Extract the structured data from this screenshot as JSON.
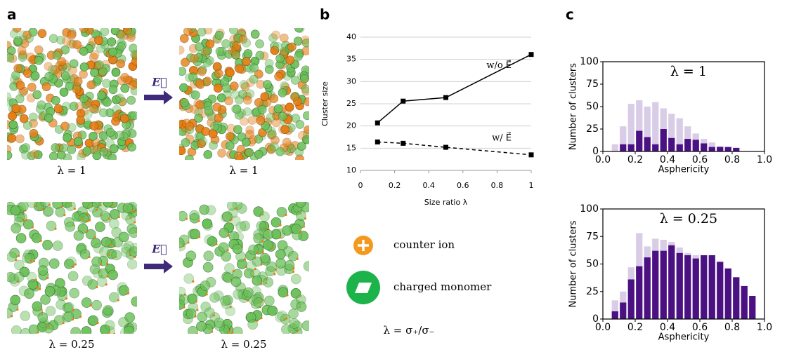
{
  "panels": [
    "a",
    "b",
    "c"
  ],
  "images": {
    "captions": [
      "λ = 1",
      "λ = 1",
      "λ = 0.25",
      "λ = 0.25"
    ],
    "arrow_labels": [
      "E⃗",
      "E⃗"
    ]
  },
  "legend": {
    "items": [
      "counter ion",
      "charged monomer"
    ],
    "formula": "λ = σ₊/σ₋"
  },
  "chart_data": [
    {
      "type": "line",
      "x": [
        0.1,
        0.25,
        0.5,
        1
      ],
      "xlabel": "Size ratio λ",
      "ylabel": "Cluster size",
      "xlim": [
        0,
        1
      ],
      "xticks": [
        0,
        0.2,
        0.4,
        0.6,
        0.8,
        1
      ],
      "ylim": [
        10,
        40
      ],
      "yticks": [
        10,
        15,
        20,
        25,
        30,
        35,
        40
      ],
      "grid": true,
      "series": [
        {
          "name": "w/o E⃗",
          "color": "#000000",
          "dash": false,
          "values": [
            20.7,
            25.6,
            26.4,
            36.1
          ]
        },
        {
          "name": "w/ E⃗",
          "color": "#000000",
          "dash": true,
          "values": [
            16.4,
            16.1,
            15.2,
            13.5
          ]
        }
      ]
    },
    {
      "type": "histogram",
      "title": "λ = 1",
      "xlabel": "Asphericity",
      "ylabel": "Number of clusters",
      "bins": [
        0.05,
        0.1,
        0.15,
        0.2,
        0.25,
        0.3,
        0.35,
        0.4,
        0.45,
        0.5,
        0.55,
        0.6,
        0.65,
        0.7,
        0.75,
        0.8,
        0.85
      ],
      "xlim": [
        0,
        1
      ],
      "xticks": [
        {
          "value": 0,
          "label": "0.0"
        },
        0.2,
        0.4,
        0.6,
        0.8,
        {
          "value": 1,
          "label": "1.0"
        }
      ],
      "ylim": [
        0,
        100
      ],
      "yticks": [
        0,
        25,
        50,
        75,
        100
      ],
      "series": [
        {
          "color": "#d8cce6",
          "values": [
            8,
            28,
            53,
            57,
            50,
            55,
            48,
            42,
            37,
            28,
            20,
            14,
            10,
            6,
            5,
            3
          ]
        },
        {
          "color": "#4b1183",
          "values": [
            0,
            8,
            8,
            23,
            16,
            8,
            25,
            15,
            8,
            14,
            13,
            9,
            5,
            5,
            5,
            4
          ]
        }
      ]
    },
    {
      "type": "histogram",
      "title": "λ = 0.25",
      "xlabel": "Asphericity",
      "ylabel": "Number of clusters",
      "bins": [
        0.05,
        0.1,
        0.15,
        0.2,
        0.25,
        0.3,
        0.35,
        0.4,
        0.45,
        0.5,
        0.55,
        0.6,
        0.65,
        0.7,
        0.75,
        0.8,
        0.85,
        0.9,
        0.95
      ],
      "xlim": [
        0,
        1
      ],
      "xticks": [
        {
          "value": 0,
          "label": "0.0"
        },
        0.2,
        0.4,
        0.6,
        0.8,
        {
          "value": 1,
          "label": "1.0"
        }
      ],
      "ylim": [
        0,
        100
      ],
      "yticks": [
        0,
        25,
        50,
        75,
        100
      ],
      "series": [
        {
          "color": "#d8cce6",
          "values": [
            17,
            25,
            47,
            78,
            66,
            73,
            72,
            70,
            65,
            60,
            58,
            57,
            56,
            52,
            45,
            38,
            30,
            21
          ]
        },
        {
          "color": "#4b1183",
          "values": [
            7,
            15,
            36,
            48,
            56,
            62,
            62,
            67,
            60,
            58,
            55,
            58,
            58,
            52,
            46,
            38,
            30,
            21
          ]
        }
      ]
    }
  ]
}
